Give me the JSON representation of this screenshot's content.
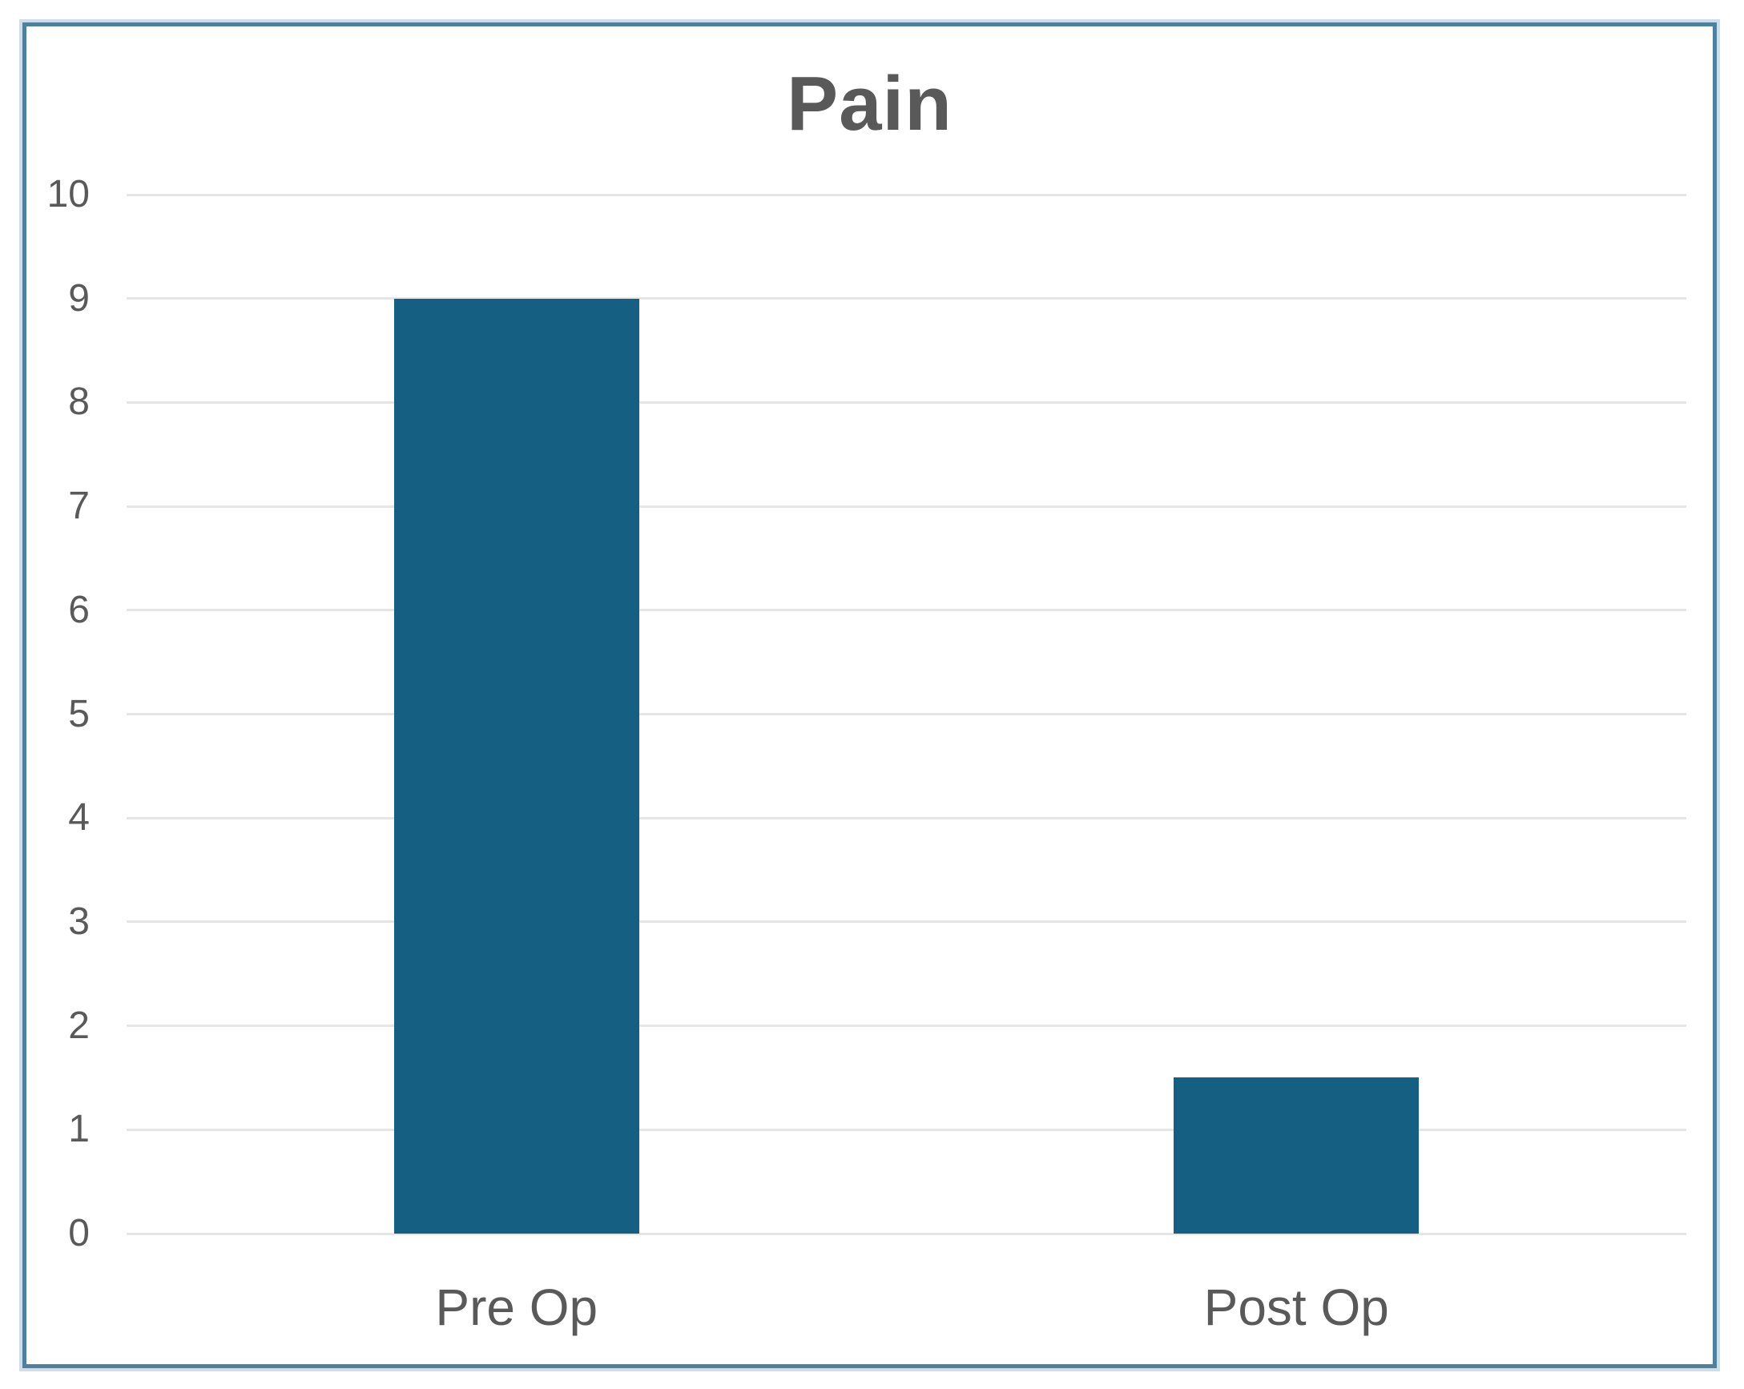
{
  "chart_data": {
    "type": "bar",
    "title": "Pain",
    "categories": [
      "Pre Op",
      "Post Op"
    ],
    "values": [
      9,
      1.5
    ],
    "xlabel": "",
    "ylabel": "",
    "ylim": [
      0,
      10
    ],
    "ytick_step": 1,
    "ytick_labels": [
      "0",
      "1",
      "2",
      "3",
      "4",
      "5",
      "6",
      "7",
      "8",
      "9",
      "10"
    ],
    "grid": true,
    "legend": "none"
  },
  "colors": {
    "bar_fill": "#156082",
    "frame_border": "#4e81a0",
    "frame_border_outer": "#cfdde7",
    "gridline": "#e5e5e5",
    "title_text": "#595959",
    "axis_text": "#595959",
    "background": "#ffffff"
  }
}
